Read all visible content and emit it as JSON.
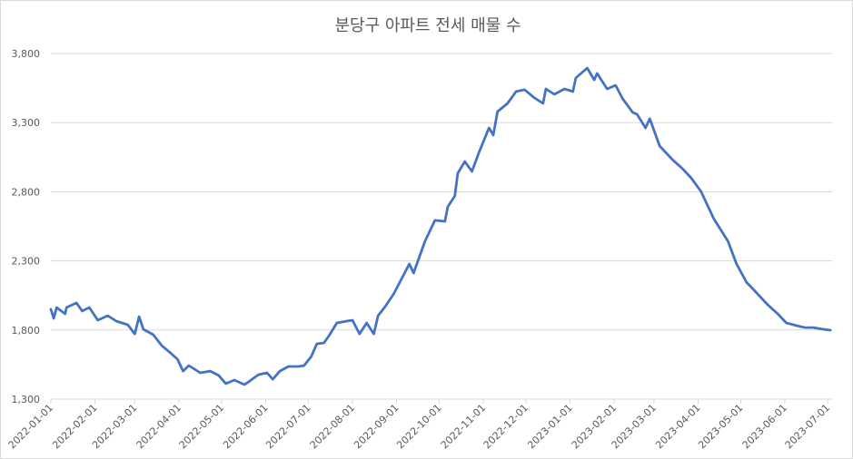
{
  "chart_data": {
    "type": "line",
    "title": "분당구 아파트 전세 매물 수",
    "xlabel": "",
    "ylabel": "",
    "ylim": [
      1300,
      3800
    ],
    "y_ticks": [
      "1,300",
      "1,800",
      "2,300",
      "2,800",
      "3,300",
      "3,800"
    ],
    "y_tick_values": [
      1300,
      1800,
      2300,
      2800,
      3300,
      3800
    ],
    "xlim": [
      "2022-01-01",
      "2023-07-01"
    ],
    "x_ticks": [
      "2022-01-01",
      "2022-02-01",
      "2022-03-01",
      "2022-04-01",
      "2022-05-01",
      "2022-06-01",
      "2022-07-01",
      "2022-08-01",
      "2022-09-01",
      "2022-10-01",
      "2022-11-01",
      "2022-12-01",
      "2023-01-01",
      "2023-02-01",
      "2023-03-01",
      "2023-04-01",
      "2023-05-01",
      "2023-06-01",
      "2023-07-01"
    ],
    "grid": "horizontal",
    "legend": "none",
    "line_color": "#4472C4",
    "series": [
      {
        "x": [
          "2022-01-01",
          "2022-01-03",
          "2022-01-05",
          "2022-01-11",
          "2022-01-12",
          "2022-01-19",
          "2022-01-23",
          "2022-01-28",
          "2022-02-03",
          "2022-02-10",
          "2022-02-16",
          "2022-02-24",
          "2022-03-01",
          "2022-03-04",
          "2022-03-07",
          "2022-03-14",
          "2022-03-20",
          "2022-03-26",
          "2022-03-31",
          "2022-04-04",
          "2022-04-08",
          "2022-04-16",
          "2022-04-23",
          "2022-04-29",
          "2022-05-04",
          "2022-05-10",
          "2022-05-17",
          "2022-05-20",
          "2022-05-27",
          "2022-06-02",
          "2022-06-06",
          "2022-06-11",
          "2022-06-17",
          "2022-06-24",
          "2022-06-28",
          "2022-07-03",
          "2022-07-07",
          "2022-07-12",
          "2022-07-16",
          "2022-07-21",
          "2022-07-28",
          "2022-08-01",
          "2022-08-06",
          "2022-08-11",
          "2022-08-16",
          "2022-08-19",
          "2022-08-24",
          "2022-08-30",
          "2022-09-10",
          "2022-09-13",
          "2022-09-21",
          "2022-09-28",
          "2022-10-05",
          "2022-10-07",
          "2022-10-12",
          "2022-10-14",
          "2022-10-19",
          "2022-10-24",
          "2022-10-29",
          "2022-11-05",
          "2022-11-08",
          "2022-11-11",
          "2022-11-18",
          "2022-11-24",
          "2022-11-30",
          "2022-12-07",
          "2022-12-13",
          "2022-12-15",
          "2022-12-21",
          "2022-12-28",
          "2023-01-03",
          "2023-01-05",
          "2023-01-13",
          "2023-01-18",
          "2023-01-20",
          "2023-01-27",
          "2023-02-02",
          "2023-02-07",
          "2023-02-14",
          "2023-02-17",
          "2023-02-23",
          "2023-02-26",
          "2023-03-05",
          "2023-03-14",
          "2023-03-21",
          "2023-03-27",
          "2023-04-03",
          "2023-04-12",
          "2023-04-22",
          "2023-04-28",
          "2023-05-05",
          "2023-05-08",
          "2023-05-14",
          "2023-05-20",
          "2023-05-27",
          "2023-06-02",
          "2023-06-09",
          "2023-06-15",
          "2023-06-21",
          "2023-06-28",
          "2023-07-03"
        ],
        "values": [
          1950,
          1884,
          1963,
          1917,
          1963,
          1996,
          1937,
          1963,
          1871,
          1904,
          1864,
          1838,
          1772,
          1897,
          1805,
          1766,
          1687,
          1635,
          1589,
          1503,
          1543,
          1490,
          1503,
          1471,
          1412,
          1438,
          1405,
          1425,
          1477,
          1490,
          1444,
          1503,
          1536,
          1536,
          1543,
          1608,
          1700,
          1707,
          1766,
          1851,
          1864,
          1871,
          1772,
          1851,
          1772,
          1904,
          1969,
          2061,
          2278,
          2212,
          2442,
          2593,
          2586,
          2691,
          2770,
          2934,
          3019,
          2947,
          3085,
          3262,
          3210,
          3380,
          3439,
          3525,
          3538,
          3479,
          3439,
          3544,
          3505,
          3544,
          3525,
          3623,
          3695,
          3610,
          3656,
          3544,
          3570,
          3472,
          3374,
          3361,
          3262,
          3328,
          3131,
          3032,
          2967,
          2901,
          2803,
          2606,
          2442,
          2278,
          2146,
          2114,
          2048,
          1982,
          1917,
          1851,
          1832,
          1818,
          1818,
          1805,
          1799
        ]
      }
    ]
  }
}
